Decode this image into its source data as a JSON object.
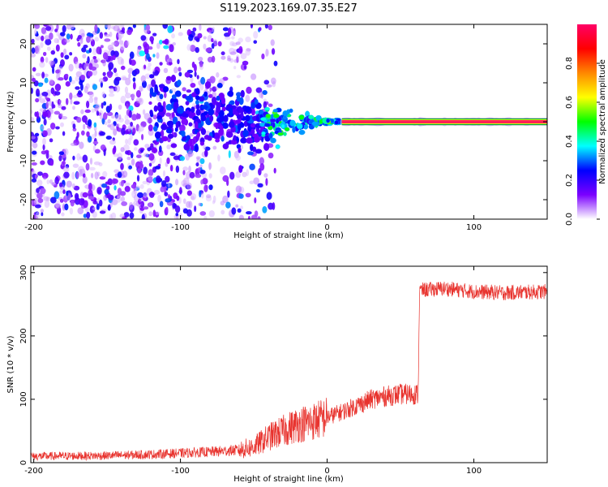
{
  "title": "S119.2023.169.07.35.E27",
  "chart_data": [
    {
      "type": "heatmap",
      "xlabel": "Height of straight line (km)",
      "ylabel": "Frequency (Hz)",
      "xlim": [
        -202,
        150
      ],
      "ylim": [
        -25,
        25
      ],
      "x_ticks": [
        -200,
        -100,
        0,
        100
      ],
      "y_ticks": [
        -20,
        -10,
        0,
        10,
        20
      ],
      "colorbar": {
        "label": "Normalized spectral amplitude",
        "range": [
          0,
          1
        ],
        "ticks": [
          "0.0",
          "0.2",
          "0.4",
          "0.6",
          "0.8"
        ],
        "colors": [
          "#ffffff",
          "#7b00ff",
          "#0000ff",
          "#00ffff",
          "#00ff00",
          "#ffff00",
          "#ff8800",
          "#ff0000",
          "#ff0066"
        ]
      },
      "features": {
        "carrier_line_start_km": 10,
        "carrier_frequency_hz": 0,
        "scintillation_region_km": [
          -202,
          -45
        ],
        "transition_region_km": [
          -45,
          10
        ]
      }
    },
    {
      "type": "line",
      "xlabel": "Height of straight line (km)",
      "ylabel": "SNR (10 * v/v)",
      "xlim": [
        -202,
        150
      ],
      "ylim": [
        0,
        310
      ],
      "x_ticks": [
        -200,
        -100,
        0,
        100
      ],
      "y_ticks": [
        0,
        100,
        200,
        300
      ],
      "color": "#e8332e",
      "x": [
        -202,
        -150,
        -120,
        -100,
        -80,
        -60,
        -50,
        -40,
        -30,
        -20,
        -10,
        0,
        10,
        20,
        30,
        40,
        50,
        62,
        63,
        80,
        100,
        120,
        150
      ],
      "y": [
        10,
        11,
        13,
        15,
        17,
        20,
        25,
        40,
        50,
        60,
        65,
        72,
        80,
        90,
        100,
        105,
        108,
        108,
        272,
        275,
        270,
        268,
        270
      ]
    }
  ]
}
